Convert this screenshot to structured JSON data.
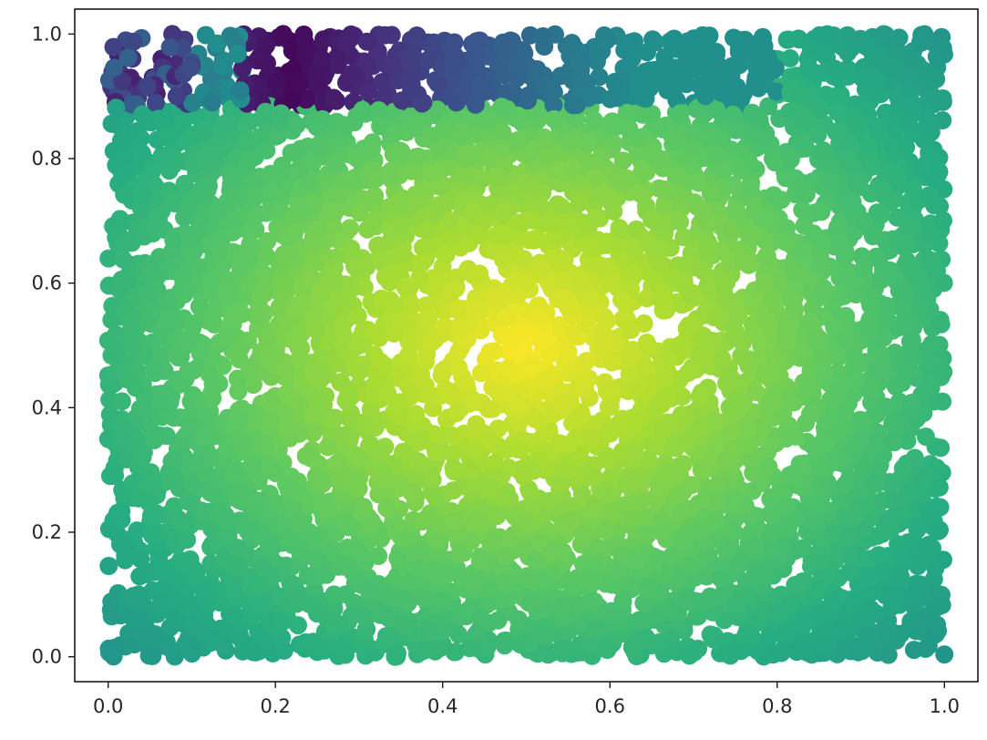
{
  "chart_data": {
    "type": "scatter",
    "title": "",
    "xlabel": "",
    "ylabel": "",
    "xlim": [
      -0.04,
      1.04
    ],
    "ylim": [
      -0.04,
      1.04
    ],
    "grid": false,
    "legend": "none",
    "colormap": "viridis",
    "x_ticks": [
      0.0,
      0.2,
      0.4,
      0.6,
      0.8,
      1.0
    ],
    "x_tick_labels": [
      "0.0",
      "0.2",
      "0.4",
      "0.6",
      "0.8",
      "1.0"
    ],
    "y_ticks": [
      0.0,
      0.2,
      0.4,
      0.6,
      0.8,
      1.0
    ],
    "y_tick_labels": [
      "0.0",
      "0.2",
      "0.4",
      "0.6",
      "0.8",
      "1.0"
    ],
    "point_count_estimate": 6000,
    "x_range": [
      0.0,
      1.0
    ],
    "y_range": [
      0.0,
      1.0
    ],
    "regions": [
      {
        "name": "main-field",
        "x": [
          0.0,
          1.0
        ],
        "y": [
          0.0,
          0.88
        ],
        "color_value": "radial: highest at (0.5, 0.5), decreasing toward corners"
      },
      {
        "name": "top-right-strip",
        "x": [
          0.8,
          1.0
        ],
        "y": [
          0.88,
          1.0
        ],
        "color_value": "same radial field as main region"
      },
      {
        "name": "top-left-strip",
        "x": [
          0.0,
          0.8
        ],
        "y": [
          0.88,
          1.0
        ],
        "color_value": "low values: dark purple near x≈0.22, blue near x≈0.0–0.1, teal for x≥0.35"
      }
    ],
    "colors": {
      "min": "#440154",
      "mid": "#21918c",
      "max": "#fde725"
    }
  }
}
